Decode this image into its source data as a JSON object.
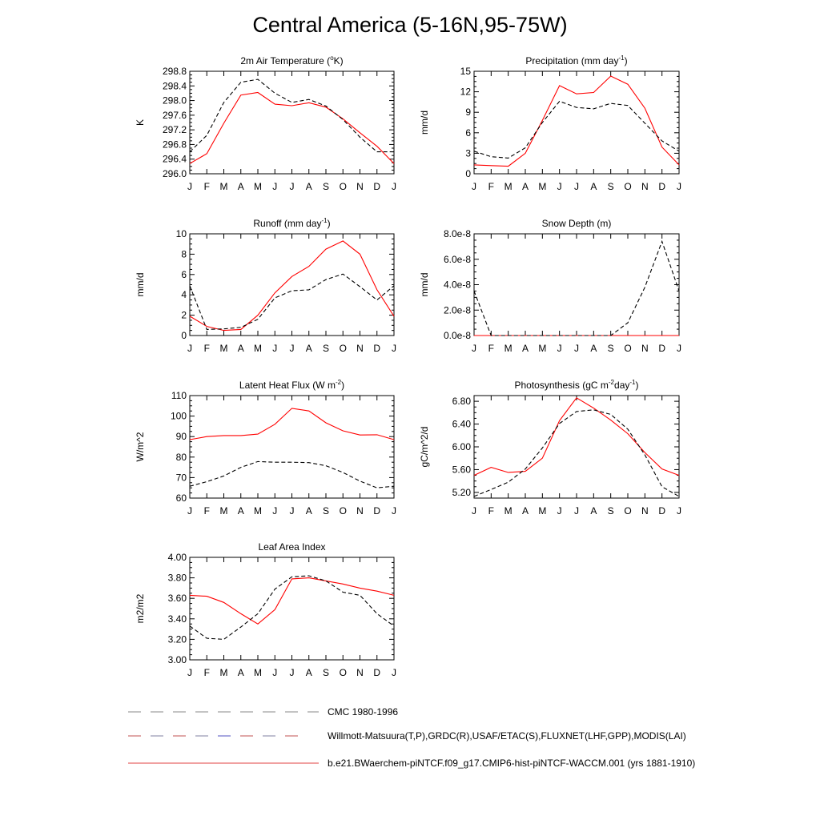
{
  "page_title": "Central America (5-16N,95-75W)",
  "colors": {
    "model": "#ff0000",
    "obs": "#000000",
    "axis": "#000000"
  },
  "months": [
    "J",
    "F",
    "M",
    "A",
    "M",
    "J",
    "J",
    "A",
    "S",
    "O",
    "N",
    "D",
    "J"
  ],
  "legend": {
    "entries": [
      {
        "label": "CMC 1980-1996",
        "style": "dashed-gray"
      },
      {
        "label": "Willmott-Matsuura(T,P),GRDC(R),USAF/ETAC(S),FLUXNET(LHF,GPP),MODIS(LAI)",
        "style": "dashed-multi"
      },
      {
        "label": "b.e21.BWaerchem-piNTCF.f09_g17.CMIP6-hist-piNTCF-WACCM.001 (yrs 1881-1910)",
        "style": "solid-red"
      }
    ]
  },
  "chart_data": [
    {
      "type": "line",
      "title": "2m Air Temperature (",
      "title_sup": "o",
      "title_tail": "K)",
      "ylabel": "K",
      "ylim": [
        296.0,
        298.8
      ],
      "yticks": [
        "296.0",
        "296.4",
        "296.8",
        "297.2",
        "297.6",
        "298.0",
        "298.4",
        "298.8"
      ],
      "x": [
        "J",
        "F",
        "M",
        "A",
        "M",
        "J",
        "J",
        "A",
        "S",
        "O",
        "N",
        "D",
        "J"
      ],
      "series": [
        {
          "role": "model",
          "values": [
            296.28,
            296.55,
            297.38,
            298.15,
            298.22,
            297.9,
            297.86,
            297.94,
            297.82,
            297.5,
            297.12,
            296.75,
            296.28
          ]
        },
        {
          "role": "obs",
          "values": [
            296.6,
            297.05,
            297.95,
            298.5,
            298.58,
            298.2,
            297.95,
            298.03,
            297.85,
            297.48,
            297.0,
            296.6,
            296.6
          ]
        }
      ]
    },
    {
      "type": "line",
      "title": "Precipitation (mm day",
      "title_sup": "-1",
      "title_tail": ")",
      "ylabel": "mm/d",
      "ylim": [
        0,
        15
      ],
      "yticks": [
        "0",
        "3",
        "6",
        "9",
        "12",
        "15"
      ],
      "x": [
        "J",
        "F",
        "M",
        "A",
        "M",
        "J",
        "J",
        "A",
        "S",
        "O",
        "N",
        "D",
        "J"
      ],
      "series": [
        {
          "role": "model",
          "values": [
            1.3,
            1.2,
            1.1,
            3.0,
            7.8,
            12.9,
            11.7,
            11.9,
            14.3,
            13.1,
            9.6,
            3.9,
            1.3
          ]
        },
        {
          "role": "obs",
          "values": [
            3.3,
            2.5,
            2.3,
            3.8,
            7.5,
            10.6,
            9.7,
            9.5,
            10.3,
            10.0,
            7.4,
            4.8,
            3.3
          ]
        }
      ]
    },
    {
      "type": "line",
      "title": "Runoff (mm day",
      "title_sup": "-1",
      "title_tail": ")",
      "ylabel": "mm/d",
      "ylim": [
        0,
        10
      ],
      "yticks": [
        "0",
        "2",
        "4",
        "6",
        "8",
        "10"
      ],
      "x": [
        "J",
        "F",
        "M",
        "A",
        "M",
        "J",
        "J",
        "A",
        "S",
        "O",
        "N",
        "D",
        "J"
      ],
      "series": [
        {
          "role": "model",
          "values": [
            1.9,
            0.9,
            0.5,
            0.6,
            2.0,
            4.2,
            5.8,
            6.8,
            8.5,
            9.3,
            8.0,
            4.5,
            1.9
          ]
        },
        {
          "role": "obs",
          "values": [
            4.9,
            0.6,
            0.65,
            0.8,
            1.6,
            3.7,
            4.4,
            4.5,
            5.5,
            6.05,
            4.8,
            3.5,
            4.9
          ]
        }
      ]
    },
    {
      "type": "line",
      "title": "Snow Depth (m)",
      "title_sup": "",
      "title_tail": "",
      "ylabel": "mm/d",
      "ylim": [
        0,
        8e-08
      ],
      "yticks": [
        "0.0e-8",
        "2.0e-8",
        "4.0e-8",
        "6.0e-8",
        "8.0e-8"
      ],
      "x": [
        "J",
        "F",
        "M",
        "A",
        "M",
        "J",
        "J",
        "A",
        "S",
        "O",
        "N",
        "D",
        "J"
      ],
      "series": [
        {
          "role": "model",
          "values": [
            0,
            0,
            0,
            0,
            0,
            0,
            0,
            0,
            0,
            0,
            0,
            0,
            0
          ]
        },
        {
          "role": "obs",
          "values": [
            3.5e-08,
            0,
            0,
            0,
            0,
            0,
            0,
            0,
            0,
            1e-08,
            3.8e-08,
            7.4e-08,
            3.5e-08
          ]
        }
      ]
    },
    {
      "type": "line",
      "title": "Latent Heat Flux (W m",
      "title_sup": "-2",
      "title_tail": ")",
      "ylabel": "W/m^2",
      "ylim": [
        60,
        110
      ],
      "yticks": [
        "60",
        "70",
        "80",
        "90",
        "100",
        "110"
      ],
      "x": [
        "J",
        "F",
        "M",
        "A",
        "M",
        "J",
        "J",
        "A",
        "S",
        "O",
        "N",
        "D",
        "J"
      ],
      "series": [
        {
          "role": "model",
          "values": [
            88.5,
            90.0,
            90.5,
            90.5,
            91.2,
            96.0,
            103.8,
            102.5,
            96.7,
            92.8,
            90.8,
            90.9,
            88.5
          ]
        },
        {
          "role": "obs",
          "values": [
            65.8,
            68.0,
            70.8,
            75.0,
            77.8,
            77.5,
            77.5,
            77.3,
            75.8,
            72.5,
            68.3,
            65.0,
            65.8
          ]
        }
      ]
    },
    {
      "type": "line",
      "title": "Photosynthesis (gC m",
      "title_sup": "-2",
      "title_tail": "day",
      "title_sup2": "-1",
      "title_tail2": ")",
      "ylabel": "gC/m^2/d",
      "ylim": [
        5.1,
        6.9
      ],
      "yticks": [
        "5.20",
        "5.60",
        "6.00",
        "6.40",
        "6.80"
      ],
      "x": [
        "J",
        "F",
        "M",
        "A",
        "M",
        "J",
        "J",
        "A",
        "S",
        "O",
        "N",
        "D",
        "J"
      ],
      "series": [
        {
          "role": "model",
          "values": [
            5.5,
            5.64,
            5.55,
            5.57,
            5.8,
            6.46,
            6.86,
            6.68,
            6.47,
            6.23,
            5.9,
            5.61,
            5.5
          ]
        },
        {
          "role": "obs",
          "values": [
            5.13,
            5.25,
            5.38,
            5.61,
            5.98,
            6.41,
            6.62,
            6.65,
            6.57,
            6.31,
            5.86,
            5.3,
            5.13
          ]
        }
      ]
    },
    {
      "type": "line",
      "title": "Leaf Area Index",
      "title_sup": "",
      "title_tail": "",
      "ylabel": "m2/m2",
      "ylim": [
        3.0,
        4.0
      ],
      "yticks": [
        "3.00",
        "3.20",
        "3.40",
        "3.60",
        "3.80",
        "4.00"
      ],
      "x": [
        "J",
        "F",
        "M",
        "A",
        "M",
        "J",
        "J",
        "A",
        "S",
        "O",
        "N",
        "D",
        "J"
      ],
      "series": [
        {
          "role": "model",
          "values": [
            3.63,
            3.62,
            3.56,
            3.45,
            3.35,
            3.49,
            3.79,
            3.8,
            3.77,
            3.74,
            3.7,
            3.67,
            3.63
          ]
        },
        {
          "role": "obs",
          "values": [
            3.33,
            3.21,
            3.2,
            3.32,
            3.45,
            3.69,
            3.81,
            3.82,
            3.77,
            3.66,
            3.63,
            3.45,
            3.33
          ]
        }
      ]
    }
  ]
}
